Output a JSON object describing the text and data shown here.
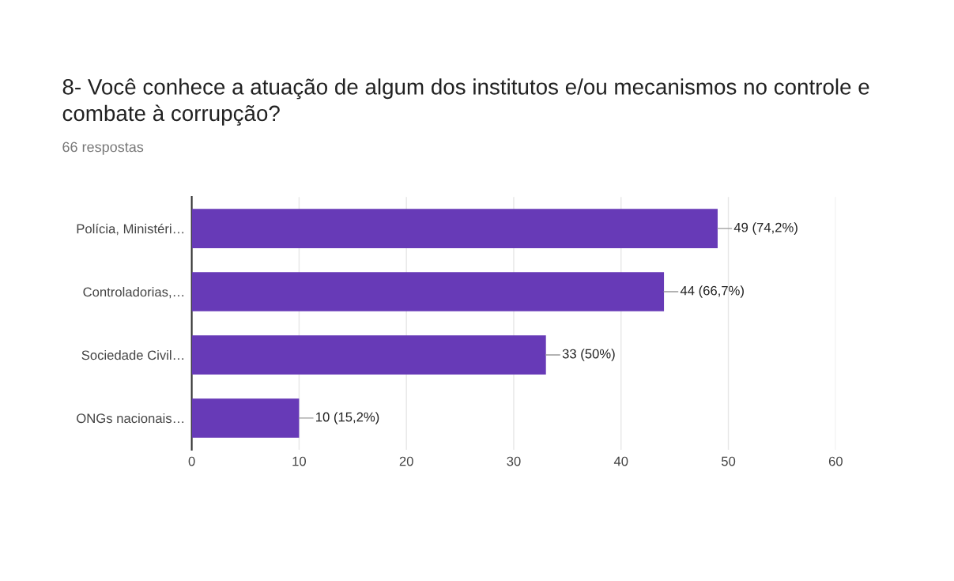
{
  "chart_data": {
    "type": "bar",
    "orientation": "horizontal",
    "title": "8- Você conhece a atuação de algum dos institutos e/ou mecanismos no controle e combate à corrupção?",
    "subtitle": "66 respostas",
    "categories": [
      "Polícia, Ministéri…",
      "Controladorias,…",
      "Sociedade Civil…",
      "ONGs nacionais…"
    ],
    "values": [
      49,
      44,
      33,
      10
    ],
    "value_labels": [
      "49 (74,2%)",
      "44 (66,7%)",
      "33 (50%)",
      "10 (15,2%)"
    ],
    "color": "#673ab7",
    "xlim": [
      0,
      60
    ],
    "xticks": [
      0,
      10,
      20,
      30,
      40,
      50,
      60
    ],
    "grid": "x",
    "legend": false
  }
}
